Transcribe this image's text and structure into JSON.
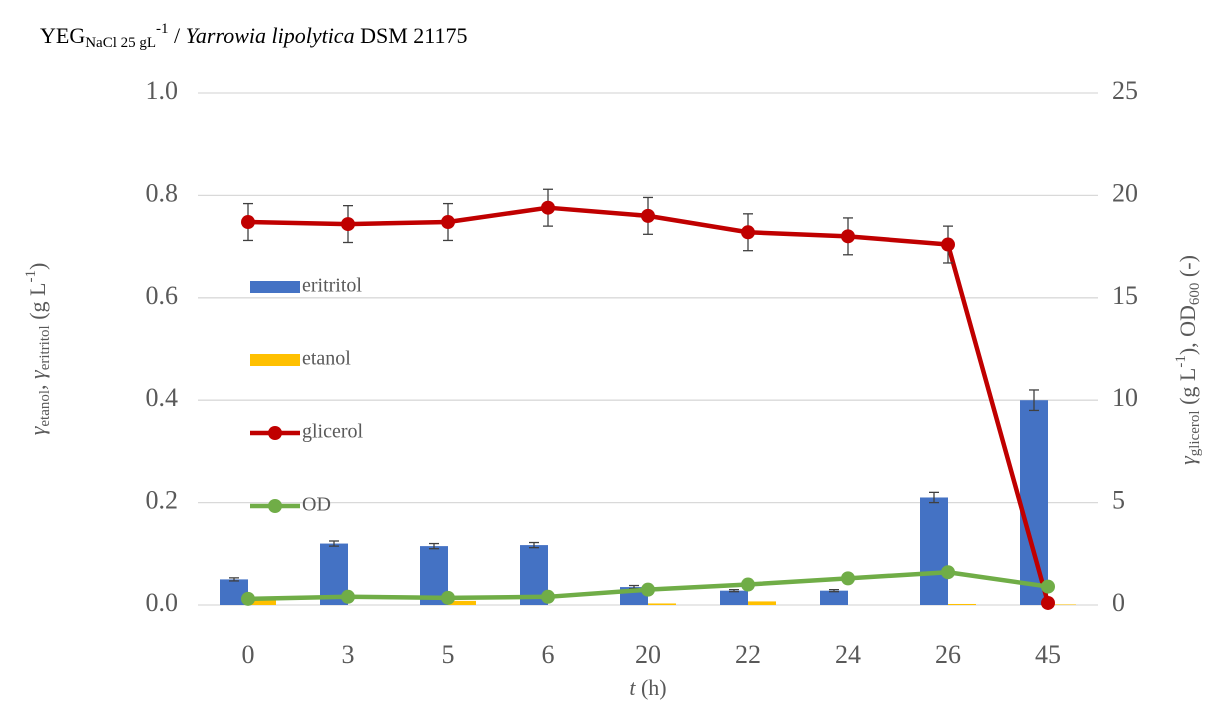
{
  "chart_data": {
    "type": "combo",
    "title": [
      "YEG",
      "NaCl 25 gL",
      "-1",
      " / ",
      "Yarrowia lipolytica",
      " DSM 21175"
    ],
    "x_label": [
      "t",
      " (h)"
    ],
    "y_label": [
      "γ",
      "etanol",
      ", ",
      "γ",
      "eritritol",
      " (g L",
      "-1",
      ")"
    ],
    "y2_label": [
      "γ",
      "glicerol",
      " (g L",
      "-1",
      "), OD",
      "600",
      " (-)"
    ],
    "categories": [
      "0",
      "3",
      "5",
      "6",
      "20",
      "22",
      "24",
      "26",
      "45"
    ],
    "ylim": [
      0,
      1
    ],
    "yticks": [
      {
        "value": 0,
        "label": "0.0"
      },
      0.2,
      0.4,
      0.6,
      0.8,
      {
        "value": 1,
        "label": "1.0"
      }
    ],
    "y2lim": [
      0,
      25
    ],
    "y2ticks": [
      0,
      5,
      10,
      15,
      20,
      25
    ],
    "grid": true,
    "legend": "left",
    "series": [
      {
        "name": "eritritol",
        "type": "bar",
        "color": "#4472c4",
        "values": [
          0.05,
          0.12,
          0.115,
          0.117,
          0.035,
          0.028,
          0.028,
          0.21,
          0.4
        ],
        "errors": [
          0.003,
          0.005,
          0.005,
          0.005,
          0.003,
          0.002,
          0.002,
          0.01,
          0.02
        ]
      },
      {
        "name": "etanol",
        "type": "bar",
        "color": "#ffc000",
        "values": [
          0.015,
          0,
          0.008,
          0,
          0.003,
          0.007,
          0,
          0.002,
          0.001
        ]
      },
      {
        "name": "glicerol",
        "type": "line",
        "color": "#c00000",
        "axis": "y2",
        "values": [
          18.7,
          18.6,
          18.7,
          19.4,
          19.0,
          18.2,
          18.0,
          17.6,
          0.1
        ],
        "errors": [
          0.9,
          0.9,
          0.9,
          0.9,
          0.9,
          0.9,
          0.9,
          0.9,
          0.05
        ]
      },
      {
        "name": "OD",
        "type": "line",
        "color": "#70ad47",
        "axis": "y2",
        "values": [
          0.3,
          0.4,
          0.35,
          0.4,
          0.75,
          1.0,
          1.3,
          1.6,
          0.9
        ]
      }
    ]
  }
}
